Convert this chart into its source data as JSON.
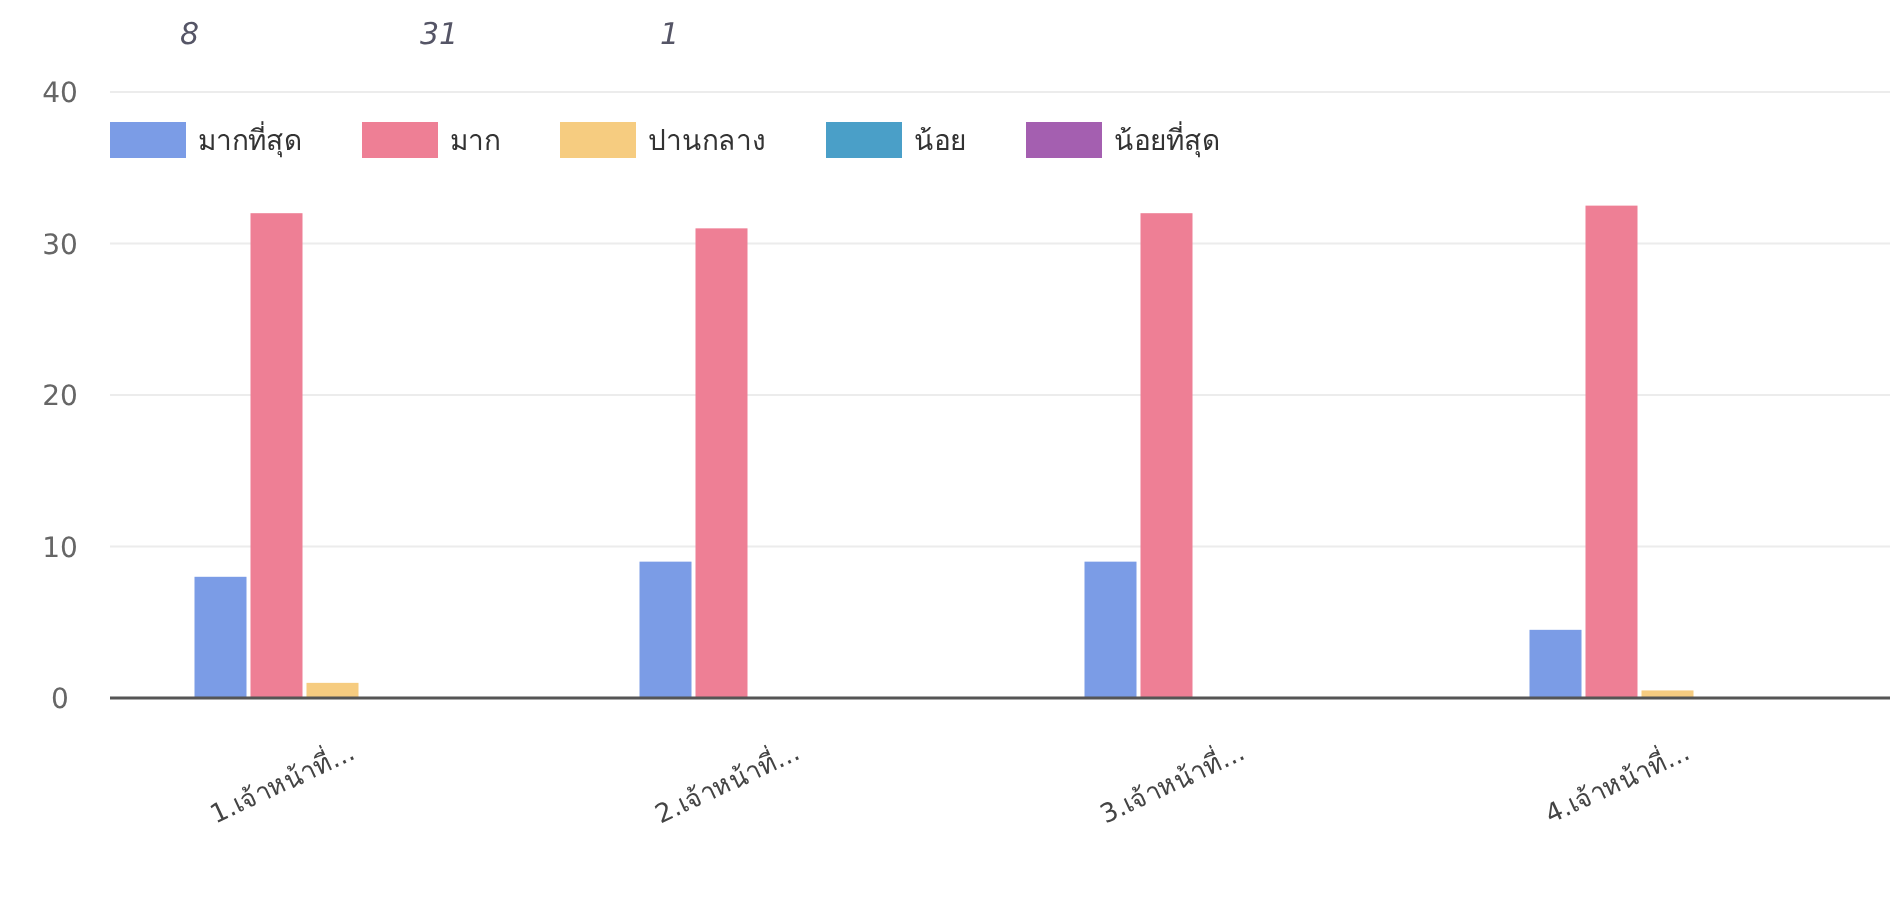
{
  "chart_data": {
    "type": "bar",
    "categories": [
      "1.เจ้าหน้าที่...",
      "2.เจ้าหน้าที่...",
      "3.เจ้าหน้าที่...",
      "4.เจ้าหน้าที่..."
    ],
    "series": [
      {
        "name": "มากที่สุด",
        "color": "#7b9ce6",
        "values": [
          8,
          9,
          9,
          4.5
        ]
      },
      {
        "name": "มาก",
        "color": "#ee7f95",
        "values": [
          32,
          31,
          32,
          32.5
        ]
      },
      {
        "name": "ปานกลาง",
        "color": "#f6cc80",
        "values": [
          1,
          0,
          0,
          0.5
        ]
      },
      {
        "name": "น้อย",
        "color": "#4a9fc8",
        "values": [
          0,
          0,
          0,
          0
        ]
      },
      {
        "name": "น้อยที่สุด",
        "color": "#a45fb0",
        "values": [
          0,
          0,
          0,
          0
        ]
      }
    ],
    "ylim": [
      0,
      40
    ],
    "yticks": [
      0,
      10,
      20,
      30,
      40
    ],
    "grid": "y",
    "legend": "top left",
    "annotations": [
      "8",
      "31",
      "1"
    ]
  }
}
